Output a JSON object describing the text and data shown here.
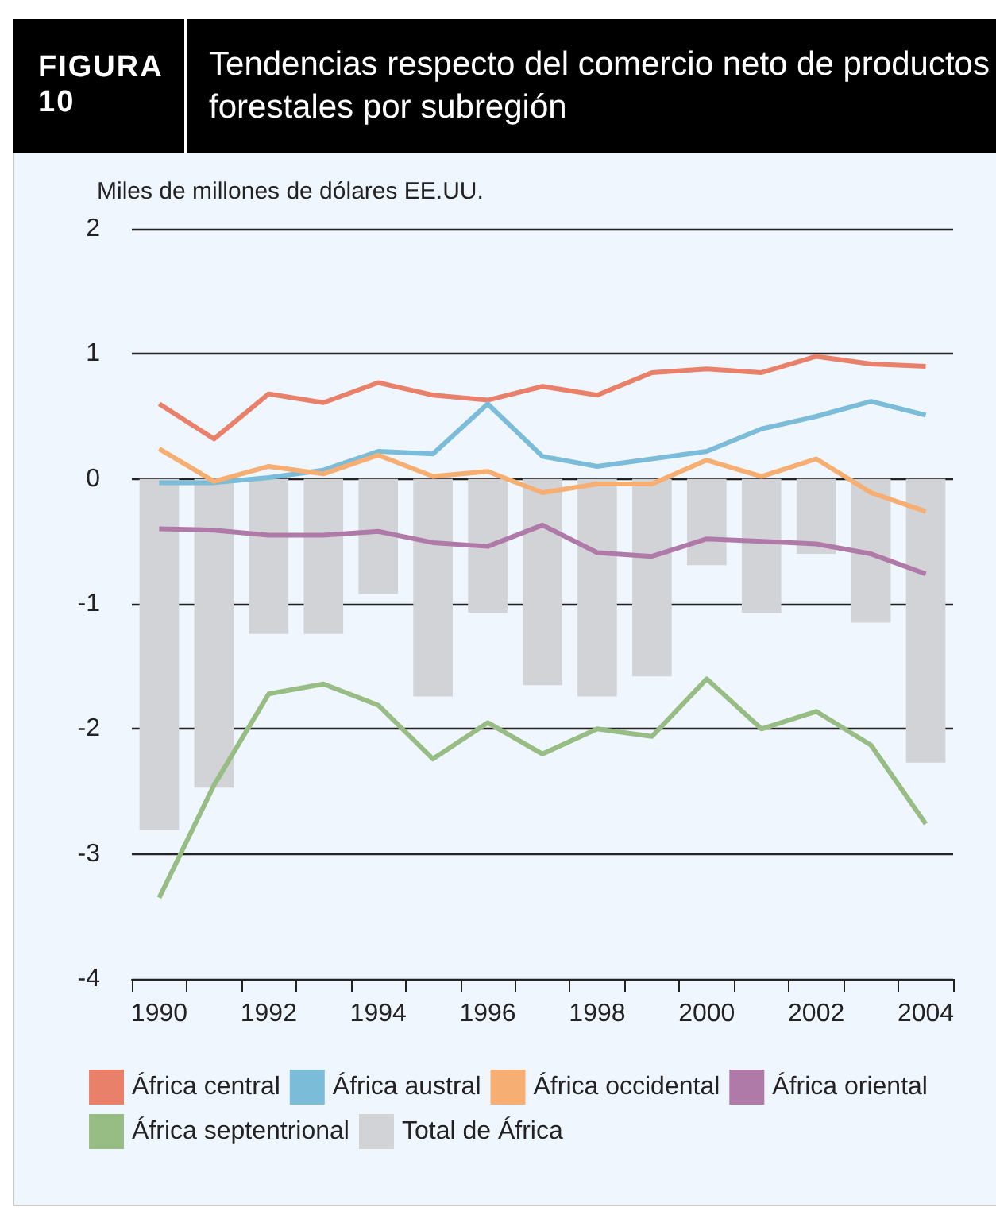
{
  "chart_data": {
    "type": "line",
    "title": "FIGURA 10",
    "subtitle": "Tendencias respecto del comercio neto de productos forestales por subregión",
    "ylabel": "Miles de millones de dólares EE.UU.",
    "categories": [
      "1990",
      null,
      "1992",
      null,
      "1994",
      null,
      "1996",
      null,
      "1998",
      null,
      "2000",
      null,
      "2002",
      null,
      "2004"
    ],
    "series": [
      {
        "name": "África central",
        "color": "#e8806a",
        "values": [
          0.6,
          0.32,
          0.68,
          0.61,
          0.77,
          0.67,
          0.63,
          0.74,
          0.67,
          0.85,
          0.88,
          0.85,
          0.98,
          0.92,
          0.9
        ]
      },
      {
        "name": "África austral",
        "color": "#7bbcd9",
        "values": [
          -0.03,
          -0.03,
          0.01,
          0.07,
          0.22,
          0.2,
          0.6,
          0.18,
          0.1,
          0.16,
          0.22,
          0.4,
          0.5,
          0.62,
          0.51
        ]
      },
      {
        "name": "África occidental",
        "color": "#f6ae72",
        "values": [
          0.24,
          -0.02,
          0.1,
          0.04,
          0.19,
          0.02,
          0.06,
          -0.11,
          -0.04,
          -0.04,
          0.15,
          0.02,
          0.16,
          -0.11,
          -0.26
        ]
      },
      {
        "name": "África oriental",
        "color": "#b07aa8",
        "values": [
          -0.4,
          -0.41,
          -0.45,
          -0.45,
          -0.42,
          -0.51,
          -0.54,
          -0.37,
          -0.59,
          -0.62,
          -0.48,
          -0.5,
          -0.52,
          -0.6,
          -0.76
        ]
      },
      {
        "name": "África septentrional",
        "color": "#97bd84",
        "values": [
          -3.35,
          -2.45,
          -1.72,
          -1.64,
          -1.81,
          -2.24,
          -1.95,
          -2.2,
          -2.0,
          -2.06,
          -1.6,
          -2.0,
          -1.86,
          -2.13,
          -2.76
        ]
      },
      {
        "name": "Total de África",
        "type": "bar",
        "color": "#d2d3d7",
        "values": [
          -2.81,
          -2.47,
          -1.24,
          -1.24,
          -0.92,
          -1.74,
          -1.07,
          -1.65,
          -1.74,
          -1.58,
          -0.69,
          -1.07,
          -0.6,
          -1.15,
          -2.27
        ]
      }
    ],
    "ylim": [
      -4,
      2
    ],
    "yticks": [
      -4,
      -3,
      -2,
      -1,
      0,
      1,
      2
    ],
    "grid": "y",
    "legend": "bottom",
    "marker": "none",
    "line_style": "solid"
  }
}
